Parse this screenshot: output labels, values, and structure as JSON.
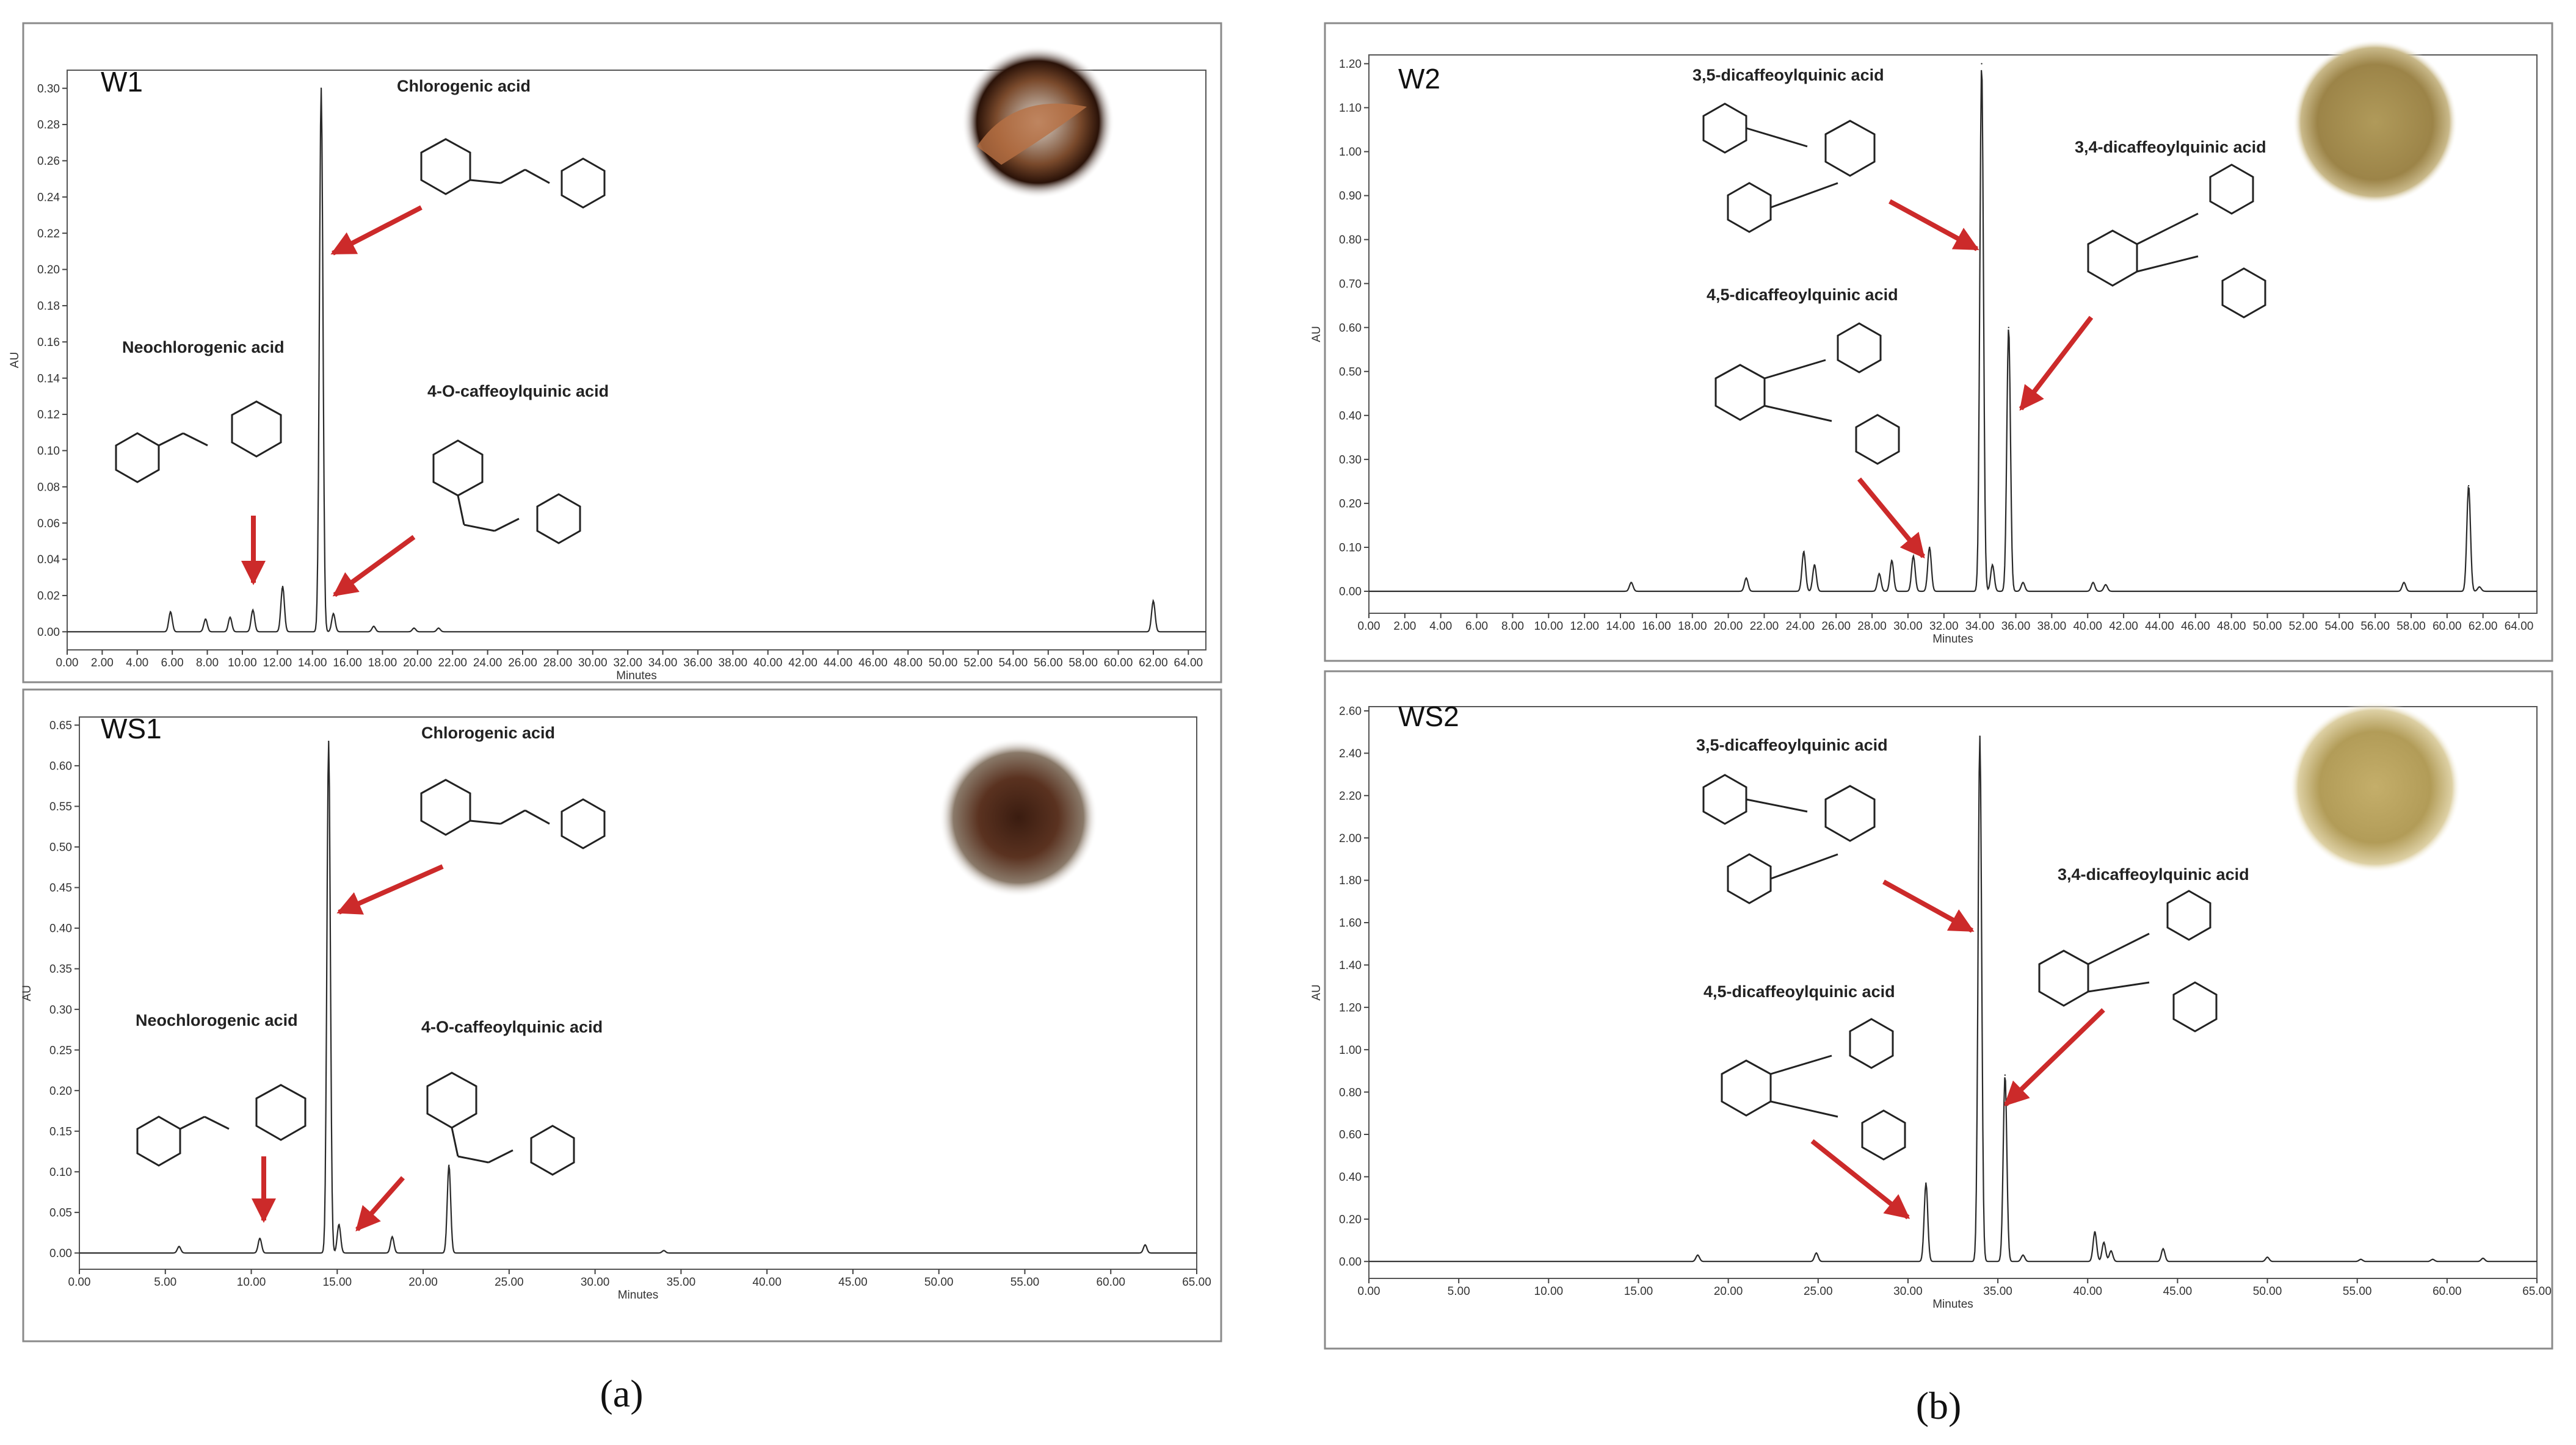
{
  "figure": {
    "labels": {
      "a": "(a)",
      "b": "(b)"
    },
    "colors": {
      "trace": "#2a2a2a",
      "arrow": "#cc2a2a",
      "frame": "#8a8a8a",
      "text": "#222222"
    }
  },
  "chart_data": [
    {
      "id": "W1",
      "type": "line",
      "title": "W1",
      "xlabel": "Minutes",
      "ylabel": "AU",
      "xlim": [
        0,
        65
      ],
      "ylim": [
        -0.01,
        0.31
      ],
      "xticks": [
        0,
        2,
        4,
        6,
        8,
        10,
        12,
        14,
        16,
        18,
        20,
        22,
        24,
        26,
        28,
        30,
        32,
        34,
        36,
        38,
        40,
        42,
        44,
        46,
        48,
        50,
        52,
        54,
        56,
        58,
        60,
        62,
        64
      ],
      "xtick_labels": [
        "0.00",
        "2.00",
        "4.00",
        "6.00",
        "8.00",
        "10.00",
        "12.00",
        "14.00",
        "16.00",
        "18.00",
        "20.00",
        "22.00",
        "24.00",
        "26.00",
        "28.00",
        "30.00",
        "32.00",
        "34.00",
        "36.00",
        "38.00",
        "40.00",
        "42.00",
        "44.00",
        "46.00",
        "48.00",
        "50.00",
        "52.00",
        "54.00",
        "56.00",
        "58.00",
        "60.00",
        "62.00",
        "64.00"
      ],
      "yticks": [
        0,
        0.02,
        0.04,
        0.06,
        0.08,
        0.1,
        0.12,
        0.14,
        0.16,
        0.18,
        0.2,
        0.22,
        0.24,
        0.26,
        0.28,
        0.3
      ],
      "ytick_labels": [
        "0.00",
        "0.02",
        "0.04",
        "0.06",
        "0.08",
        "0.10",
        "0.12",
        "0.14",
        "0.16",
        "0.18",
        "0.20",
        "0.22",
        "0.24",
        "0.26",
        "0.28",
        "0.30"
      ],
      "peaks": [
        [
          5.9,
          0.011
        ],
        [
          7.9,
          0.007
        ],
        [
          9.3,
          0.008
        ],
        [
          10.6,
          0.012
        ],
        [
          12.3,
          0.025
        ],
        [
          14.5,
          0.3
        ],
        [
          15.2,
          0.01
        ],
        [
          17.5,
          0.003
        ],
        [
          19.8,
          0.002
        ],
        [
          21.2,
          0.002
        ],
        [
          62.0,
          0.017
        ]
      ],
      "compounds": [
        {
          "name": "Chlorogenic acid",
          "peak_time": 14.5
        },
        {
          "name": "Neochlorogenic acid",
          "peak_time": 10.6
        },
        {
          "name": "4-O-caffeoylquinic acid",
          "peak_time": 15.2
        }
      ]
    },
    {
      "id": "WS1",
      "type": "line",
      "title": "WS1",
      "xlabel": "Minutes",
      "ylabel": "AU",
      "xlim": [
        0,
        65
      ],
      "ylim": [
        -0.02,
        0.66
      ],
      "xticks": [
        0,
        5,
        10,
        15,
        20,
        25,
        30,
        35,
        40,
        45,
        50,
        55,
        60,
        65
      ],
      "xtick_labels": [
        "0.00",
        "5.00",
        "10.00",
        "15.00",
        "20.00",
        "25.00",
        "30.00",
        "35.00",
        "40.00",
        "45.00",
        "50.00",
        "55.00",
        "60.00",
        "65.00"
      ],
      "yticks": [
        0,
        0.05,
        0.1,
        0.15,
        0.2,
        0.25,
        0.3,
        0.35,
        0.4,
        0.45,
        0.5,
        0.55,
        0.6,
        0.65
      ],
      "ytick_labels": [
        "0.00",
        "0.05",
        "0.10",
        "0.15",
        "0.20",
        "0.25",
        "0.30",
        "0.35",
        "0.40",
        "0.45",
        "0.50",
        "0.55",
        "0.60",
        "0.65"
      ],
      "peaks": [
        [
          5.8,
          0.008
        ],
        [
          10.5,
          0.018
        ],
        [
          14.5,
          0.63
        ],
        [
          15.1,
          0.035
        ],
        [
          18.2,
          0.02
        ],
        [
          21.5,
          0.108
        ],
        [
          34.0,
          0.003
        ],
        [
          62.0,
          0.01
        ]
      ],
      "compounds": [
        {
          "name": "Chlorogenic acid",
          "peak_time": 14.5
        },
        {
          "name": "Neochlorogenic acid",
          "peak_time": 10.5
        },
        {
          "name": "4-O-caffeoylquinic acid",
          "peak_time": 15.1
        }
      ]
    },
    {
      "id": "W2",
      "type": "line",
      "title": "W2",
      "xlabel": "Minutes",
      "ylabel": "AU",
      "xlim": [
        0,
        65
      ],
      "ylim": [
        -0.05,
        1.22
      ],
      "xticks": [
        0,
        2,
        4,
        6,
        8,
        10,
        12,
        14,
        16,
        18,
        20,
        22,
        24,
        26,
        28,
        30,
        32,
        34,
        36,
        38,
        40,
        42,
        44,
        46,
        48,
        50,
        52,
        54,
        56,
        58,
        60,
        62,
        64
      ],
      "xtick_labels": [
        "0.00",
        "2.00",
        "4.00",
        "6.00",
        "8.00",
        "10.00",
        "12.00",
        "14.00",
        "16.00",
        "18.00",
        "20.00",
        "22.00",
        "24.00",
        "26.00",
        "28.00",
        "30.00",
        "32.00",
        "34.00",
        "36.00",
        "38.00",
        "40.00",
        "42.00",
        "44.00",
        "46.00",
        "48.00",
        "50.00",
        "52.00",
        "54.00",
        "56.00",
        "58.00",
        "60.00",
        "62.00",
        "64.00"
      ],
      "yticks": [
        0,
        0.1,
        0.2,
        0.3,
        0.4,
        0.5,
        0.6,
        0.7,
        0.8,
        0.9,
        1.0,
        1.1,
        1.2
      ],
      "ytick_labels": [
        "0.00",
        "0.10",
        "0.20",
        "0.30",
        "0.40",
        "0.50",
        "0.60",
        "0.70",
        "0.80",
        "0.90",
        "1.00",
        "1.10",
        "1.20"
      ],
      "peaks": [
        [
          14.6,
          0.02
        ],
        [
          21.0,
          0.03
        ],
        [
          24.2,
          0.09
        ],
        [
          24.8,
          0.06
        ],
        [
          28.4,
          0.04
        ],
        [
          29.1,
          0.07
        ],
        [
          30.3,
          0.08
        ],
        [
          31.2,
          0.1
        ],
        [
          34.1,
          1.2
        ],
        [
          34.7,
          0.06
        ],
        [
          35.6,
          0.6
        ],
        [
          36.4,
          0.02
        ],
        [
          40.3,
          0.02
        ],
        [
          41.0,
          0.015
        ],
        [
          57.6,
          0.02
        ],
        [
          61.2,
          0.24
        ],
        [
          61.8,
          0.01
        ]
      ],
      "compounds": [
        {
          "name": "3,5-dicaffeoylquinic acid",
          "peak_time": 34.1
        },
        {
          "name": "3,4-dicaffeoylquinic acid",
          "peak_time": 35.6
        },
        {
          "name": "4,5-dicaffeoylquinic acid",
          "peak_time": 31.2
        }
      ]
    },
    {
      "id": "WS2",
      "type": "line",
      "title": "WS2",
      "xlabel": "Minutes",
      "ylabel": "AU",
      "xlim": [
        0,
        65
      ],
      "ylim": [
        -0.08,
        2.62
      ],
      "xticks": [
        0,
        5,
        10,
        15,
        20,
        25,
        30,
        35,
        40,
        45,
        50,
        55,
        60,
        65
      ],
      "xtick_labels": [
        "0.00",
        "5.00",
        "10.00",
        "15.00",
        "20.00",
        "25.00",
        "30.00",
        "35.00",
        "40.00",
        "45.00",
        "50.00",
        "55.00",
        "60.00",
        "65.00"
      ],
      "yticks": [
        0,
        0.2,
        0.4,
        0.6,
        0.8,
        1.0,
        1.2,
        1.4,
        1.6,
        1.8,
        2.0,
        2.2,
        2.4,
        2.6
      ],
      "ytick_labels": [
        "0.00",
        "0.20",
        "0.40",
        "0.60",
        "0.80",
        "1.00",
        "1.20",
        "1.40",
        "1.60",
        "1.80",
        "2.00",
        "2.20",
        "2.40",
        "2.60"
      ],
      "peaks": [
        [
          18.3,
          0.03
        ],
        [
          24.9,
          0.04
        ],
        [
          31.0,
          0.37
        ],
        [
          34.0,
          2.48
        ],
        [
          35.4,
          0.88
        ],
        [
          36.4,
          0.03
        ],
        [
          40.4,
          0.14
        ],
        [
          40.9,
          0.09
        ],
        [
          41.3,
          0.05
        ],
        [
          44.2,
          0.06
        ],
        [
          50.0,
          0.02
        ],
        [
          55.2,
          0.01
        ],
        [
          59.2,
          0.01
        ],
        [
          62.0,
          0.015
        ]
      ],
      "compounds": [
        {
          "name": "3,5-dicaffeoylquinic acid",
          "peak_time": 34.0
        },
        {
          "name": "3,4-dicaffeoylquinic acid",
          "peak_time": 35.4
        },
        {
          "name": "4,5-dicaffeoylquinic acid",
          "peak_time": 31.0
        }
      ]
    }
  ]
}
